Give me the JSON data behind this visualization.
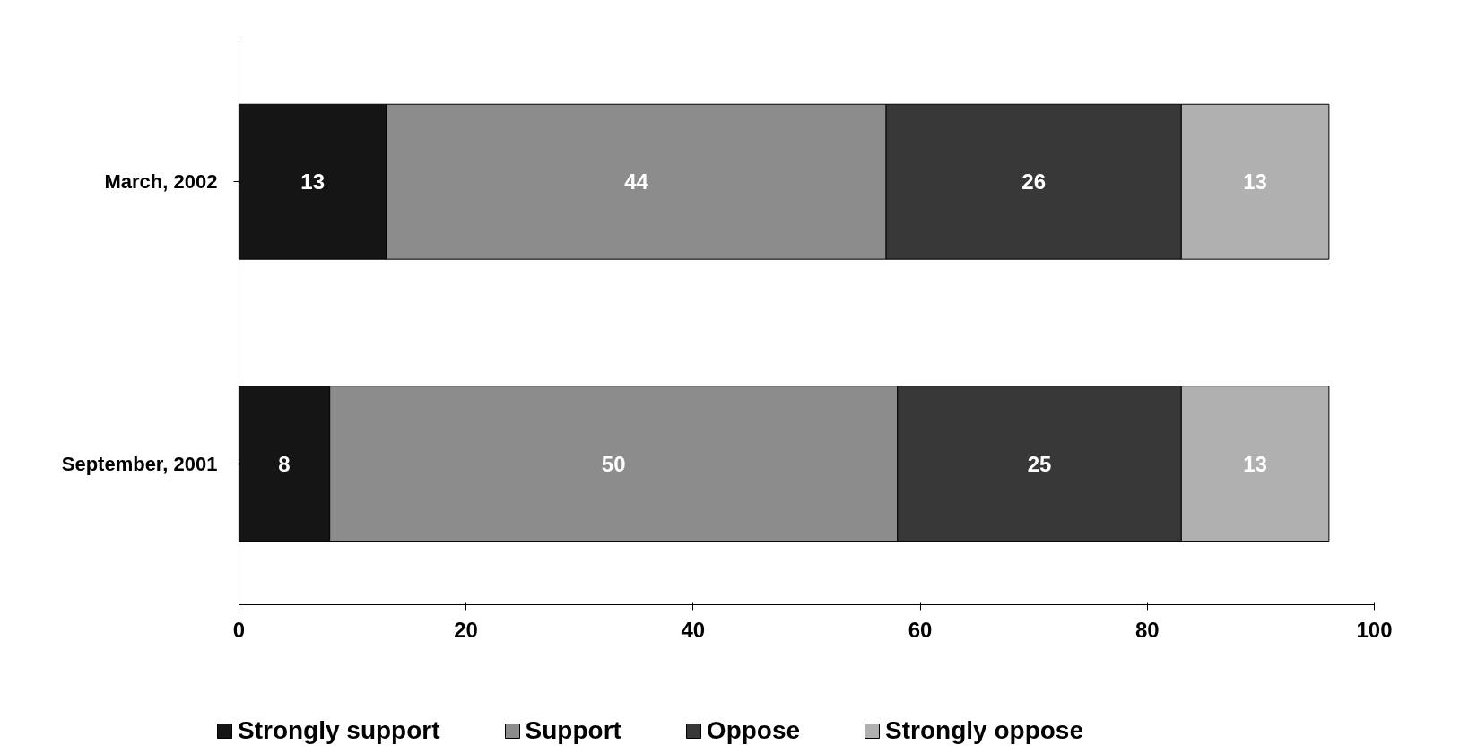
{
  "chart_data": {
    "type": "bar",
    "orientation": "horizontal",
    "stacked": true,
    "categories": [
      "March, 2002",
      "September, 2001"
    ],
    "series": [
      {
        "name": "Strongly support",
        "color": "#151515",
        "values": [
          13,
          8
        ]
      },
      {
        "name": "Support",
        "color": "#8c8c8c",
        "values": [
          44,
          50
        ]
      },
      {
        "name": "Oppose",
        "color": "#383838",
        "values": [
          26,
          25
        ]
      },
      {
        "name": "Strongly oppose",
        "color": "#b0b0b0",
        "values": [
          13,
          13
        ]
      }
    ],
    "xlim": [
      0,
      100
    ],
    "xticks": [
      0,
      20,
      40,
      60,
      80,
      100
    ],
    "data_labels": true,
    "legend": "bottom",
    "grid": false
  }
}
